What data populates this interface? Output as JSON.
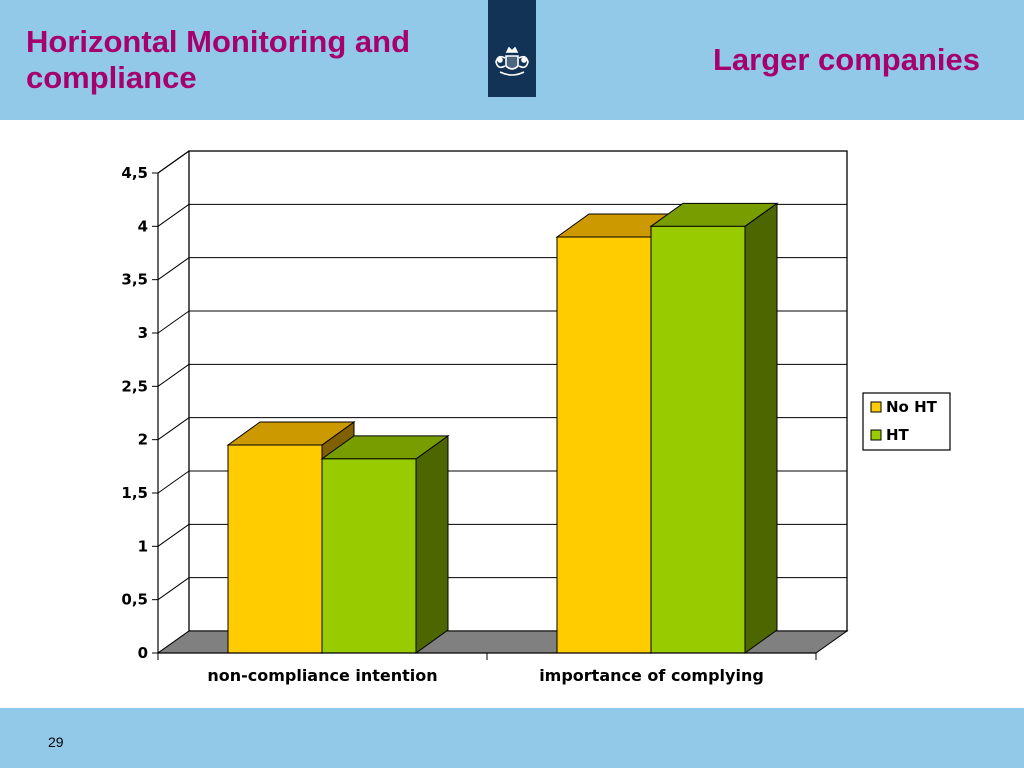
{
  "slide": {
    "title": "Horizontal Monitoring and compliance",
    "subtitle": "Larger companies",
    "page_number": "29"
  },
  "chart_data": {
    "type": "bar",
    "categories": [
      "non-compliance intention",
      "importance of complying"
    ],
    "series": [
      {
        "name": "No HT",
        "values": [
          1.95,
          3.9
        ],
        "color": "#ffcc00",
        "top_color": "#cc9900",
        "side_color": "#806000"
      },
      {
        "name": "HT",
        "values": [
          1.82,
          4.0
        ],
        "color": "#99cc00",
        "top_color": "#779d00",
        "side_color": "#4d6600"
      }
    ],
    "ylim": [
      0,
      4.5
    ],
    "yticks": [
      "0",
      "0,5",
      "1",
      "1,5",
      "2",
      "2,5",
      "3",
      "3,5",
      "4",
      "4,5"
    ],
    "grid": true,
    "legend_position": "right",
    "floor_color": "#808080",
    "xlabel": "",
    "ylabel": ""
  }
}
